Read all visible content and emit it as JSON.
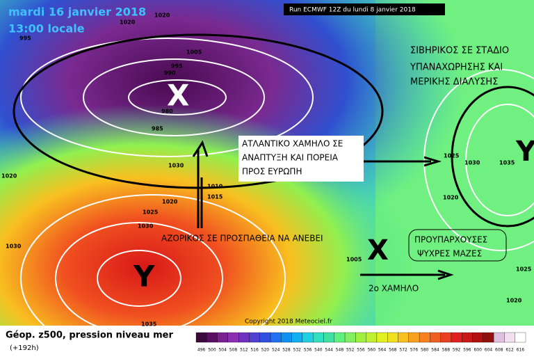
{
  "header": {
    "date": "mardi 16 janvier 2018",
    "time": "13:00 locale",
    "run": "Run ECMWF 12Z du lundi 8 janvier 2018"
  },
  "annotations": {
    "siberian": [
      "ΣΙΒΗΡΙΚΟΣ ΣΕ ΣΤΑΔΙΟ",
      "ΥΠΑΝΑΧΩΡΗΣΗΣ ΚΑΙ",
      "ΜΕΡΙΚΗΣ ΔΙΑΛΥΣΗΣ"
    ],
    "atlantic": [
      "ΑΤΛΑΝΤΙΚΟ ΧΑΜΗΛΟ ΣΕ",
      "ΑΝΑΠΤΥΞΗ ΚΑΙ ΠΟΡΕΙΑ",
      "ΠΡΟΣ ΕΥΡΩΠΗ"
    ],
    "azores": "ΑΖΟΡΙΚΟΣ ΣΕ ΠΡΟΣΠΑΘΕΙΑ ΝΑ ΑΝΕΒΕΙ",
    "cold": [
      "ΠΡΟΥΠΑΡΧΟΥΣΕΣ",
      "ΨΥΧΡΕΣ ΜΑΖΕΣ"
    ],
    "second_low": "2ο ΧΑΜΗΛΟ",
    "symbols": [
      "X",
      "Y",
      "X",
      "Y"
    ]
  },
  "isobar_labels": [
    1020,
    1020,
    995,
    1005,
    995,
    990,
    980,
    985,
    1020,
    1030,
    1010,
    1015,
    1020,
    1025,
    1030,
    1030,
    1035,
    1005,
    1025,
    1030,
    1035,
    1020,
    1025,
    1020
  ],
  "footer": {
    "label": "Géop. z500, pression niveau mer",
    "lead": "(+192h)",
    "copyright": "Copyright 2018 Meteociel.fr"
  },
  "colorbar": {
    "ticks": [
      496,
      500,
      504,
      508,
      512,
      516,
      520,
      524,
      528,
      532,
      536,
      540,
      544,
      548,
      552,
      556,
      560,
      564,
      568,
      572,
      576,
      580,
      584,
      588,
      592,
      596,
      600,
      604,
      608,
      612,
      616
    ],
    "colors": [
      "#3a0a3a",
      "#5a1060",
      "#7a2090",
      "#8a2fb0",
      "#7030c0",
      "#5040d0",
      "#3050e0",
      "#2070f0",
      "#1090f0",
      "#10b0f0",
      "#20d0e0",
      "#30e0c0",
      "#40e0a0",
      "#60f080",
      "#80f060",
      "#a0f040",
      "#c0f030",
      "#e0f020",
      "#f0e020",
      "#f8c020",
      "#f8a020",
      "#f88020",
      "#f06020",
      "#e84020",
      "#e02020",
      "#c81818",
      "#b01010",
      "#901010",
      "#e0c0e0",
      "#f0e0f0",
      "#ffffff"
    ]
  }
}
